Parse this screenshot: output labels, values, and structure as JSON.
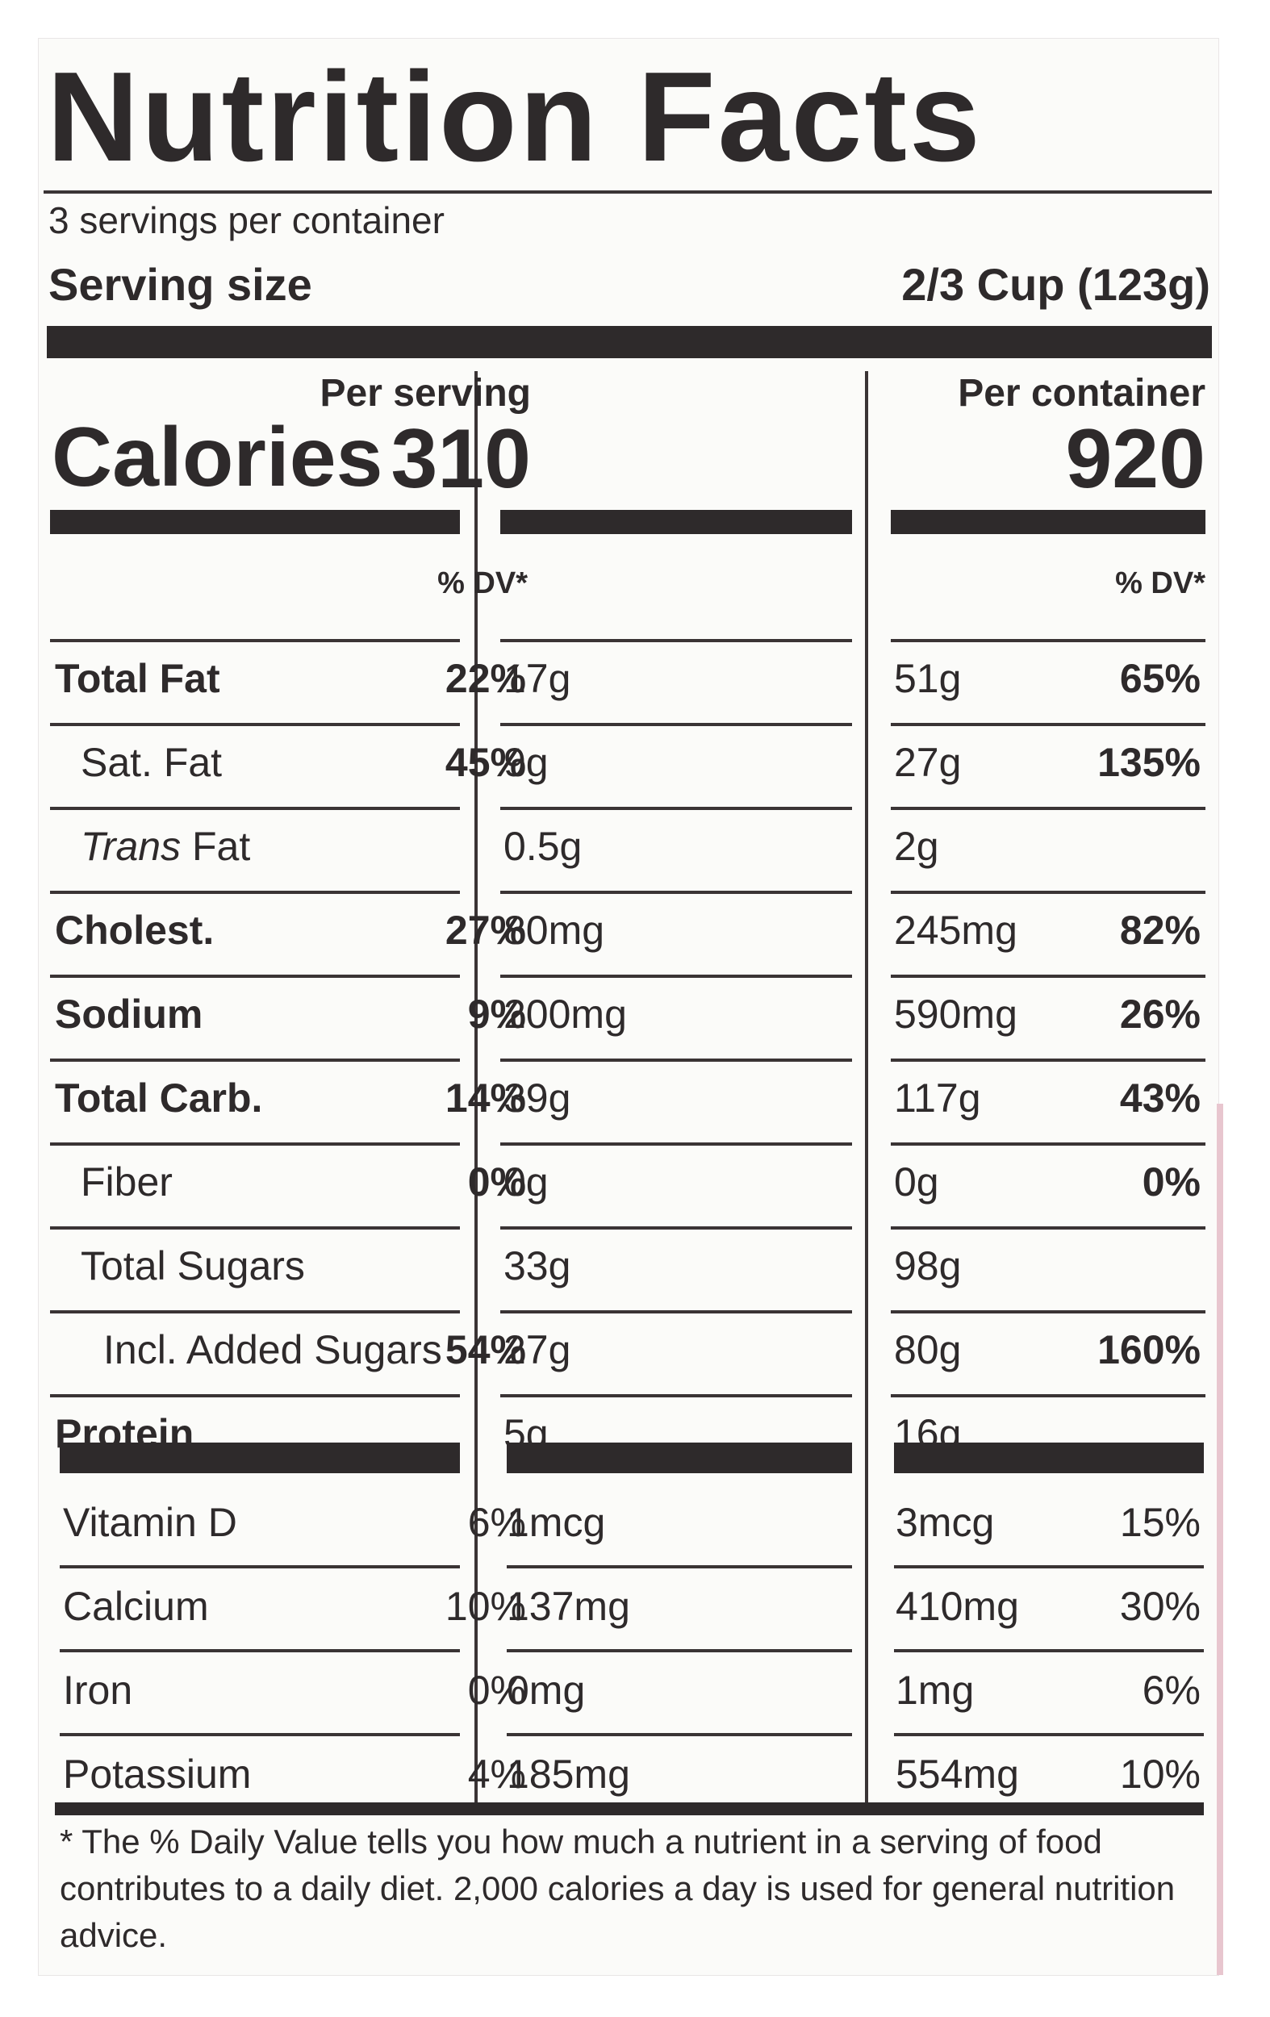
{
  "title": "Nutrition Facts",
  "servings_per_container": "3 servings per container",
  "serving_size_label": "Serving size",
  "serving_size_value": "2/3 Cup (123g)",
  "calories_label": "Calories",
  "per_serving_label": "Per serving",
  "per_container_label": "Per container",
  "calories_per_serving": "310",
  "calories_per_container": "920",
  "dv_header": "% DV*",
  "nutrients": [
    {
      "name": "Total Fat",
      "bold": true,
      "indent": 0,
      "serving_amount": "17g",
      "serving_dv": "22%",
      "container_amount": "51g",
      "container_dv": "65%"
    },
    {
      "name": "Sat. Fat",
      "bold": false,
      "indent": 1,
      "serving_amount": "9g",
      "serving_dv": "45%",
      "container_amount": "27g",
      "container_dv": "135%"
    },
    {
      "name_italic": "Trans",
      "name": " Fat",
      "bold": false,
      "indent": 1,
      "serving_amount": "0.5g",
      "serving_dv": "",
      "container_amount": "2g",
      "container_dv": ""
    },
    {
      "name": "Cholest.",
      "bold": true,
      "indent": 0,
      "serving_amount": "80mg",
      "serving_dv": "27%",
      "container_amount": "245mg",
      "container_dv": "82%"
    },
    {
      "name": "Sodium",
      "bold": true,
      "indent": 0,
      "serving_amount": "200mg",
      "serving_dv": "9%",
      "container_amount": "590mg",
      "container_dv": "26%"
    },
    {
      "name": "Total Carb.",
      "bold": true,
      "indent": 0,
      "serving_amount": "39g",
      "serving_dv": "14%",
      "container_amount": "117g",
      "container_dv": "43%"
    },
    {
      "name": "Fiber",
      "bold": false,
      "indent": 1,
      "serving_amount": "0g",
      "serving_dv": "0%",
      "container_amount": "0g",
      "container_dv": "0%"
    },
    {
      "name": "Total Sugars",
      "bold": false,
      "indent": 1,
      "serving_amount": "33g",
      "serving_dv": "",
      "container_amount": "98g",
      "container_dv": ""
    },
    {
      "name": "Incl. Added Sugars",
      "bold": false,
      "indent": 2,
      "serving_amount": "27g",
      "serving_dv": "54%",
      "container_amount": "80g",
      "container_dv": "160%"
    },
    {
      "name": "Protein",
      "bold": true,
      "indent": 0,
      "serving_amount": "5g",
      "serving_dv": "",
      "container_amount": "16g",
      "container_dv": ""
    }
  ],
  "vitamins": [
    {
      "name": "Vitamin D",
      "serving_amount": "1mcg",
      "serving_dv": "6%",
      "container_amount": "3mcg",
      "container_dv": "15%"
    },
    {
      "name": "Calcium",
      "serving_amount": "137mg",
      "serving_dv": "10%",
      "container_amount": "410mg",
      "container_dv": "30%"
    },
    {
      "name": "Iron",
      "serving_amount": "0mg",
      "serving_dv": "0%",
      "container_amount": "1mg",
      "container_dv": "6%"
    },
    {
      "name": "Potassium",
      "serving_amount": "185mg",
      "serving_dv": "4%",
      "container_amount": "554mg",
      "container_dv": "10%"
    }
  ],
  "footnote": "* The % Daily Value tells you how much a nutrient in a serving of food contributes to a daily diet. 2,000 calories a day is used for general nutrition advice."
}
